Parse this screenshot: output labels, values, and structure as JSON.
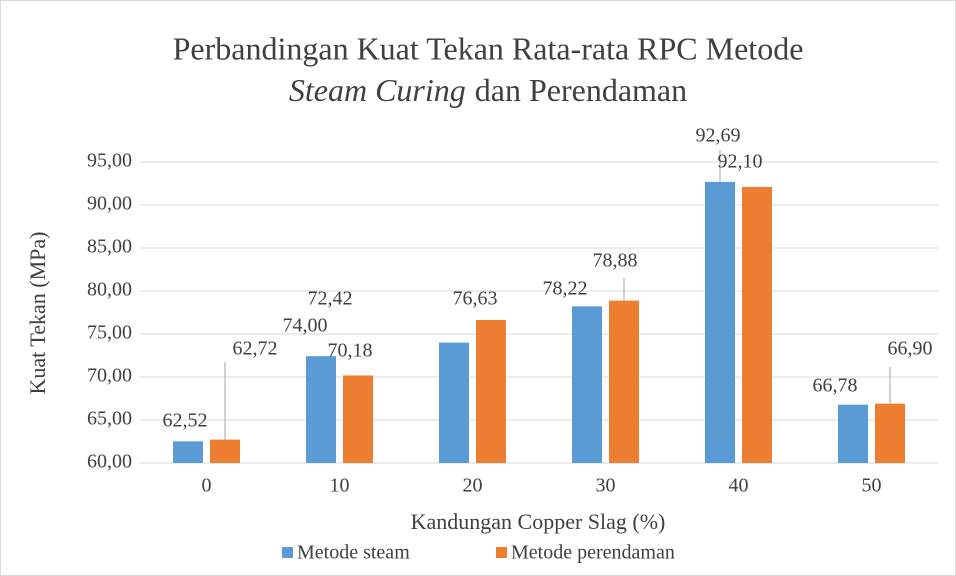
{
  "chart_data": {
    "type": "bar",
    "title": [
      "Perbandingan Kuat Tekan Rata-rata RPC Metode",
      "Steam Curing",
      "dan Perendaman"
    ],
    "x_label": "Kandungan Copper Slag (%)",
    "y_label": "Kuat Tekan (MPa)",
    "categories": [
      "0",
      "10",
      "20",
      "30",
      "40",
      "50"
    ],
    "series": [
      {
        "name": "Metode steam",
        "color": "#5b9bd5",
        "values": [
          62.52,
          72.42,
          74.0,
          78.22,
          92.69,
          66.78
        ],
        "value_labels": [
          "62,52",
          "72,42",
          "74,00",
          "78,22",
          "92,69",
          "66,78"
        ]
      },
      {
        "name": "Metode perendaman",
        "color": "#ed7d31",
        "values": [
          62.72,
          70.18,
          76.63,
          78.88,
          92.1,
          66.9
        ],
        "value_labels": [
          "62,72",
          "70,18",
          "76,63",
          "78,88",
          "92,10",
          "66,90"
        ]
      }
    ],
    "ylim": [
      60,
      95
    ],
    "yticks": [
      {
        "value": 60,
        "label": "60,00"
      },
      {
        "value": 65,
        "label": "65,00"
      },
      {
        "value": 70,
        "label": "70,00"
      },
      {
        "value": 75,
        "label": "75,00"
      },
      {
        "value": 80,
        "label": "80,00"
      },
      {
        "value": 85,
        "label": "85,00"
      },
      {
        "value": 90,
        "label": "90,00"
      },
      {
        "value": 95,
        "label": "95,00"
      }
    ],
    "grid": true,
    "legend": "bottom"
  }
}
